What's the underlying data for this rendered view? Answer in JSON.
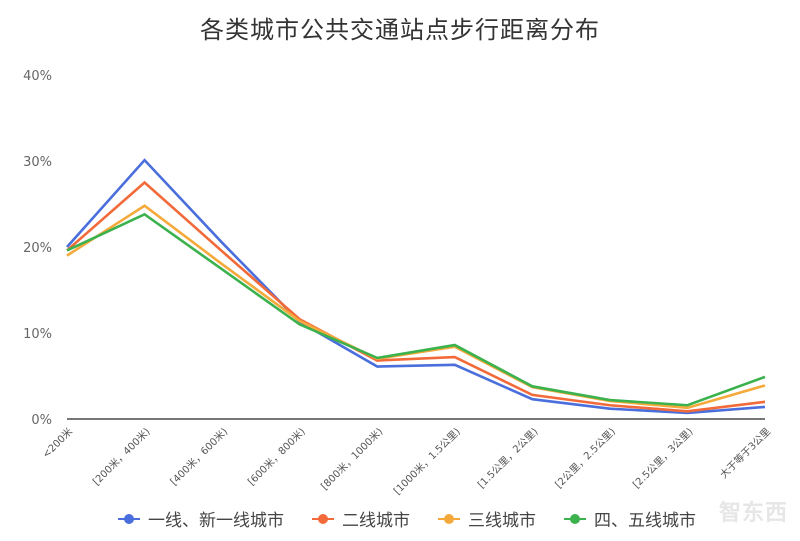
{
  "chart_data": {
    "type": "line",
    "title": "各类城市公共交通站点步行距离分布",
    "xlabel": "",
    "ylabel": "",
    "ylim": [
      0,
      40
    ],
    "yticks": [
      "0%",
      "10%",
      "20%",
      "30%",
      "40%"
    ],
    "grid": false,
    "legend_position": "bottom",
    "categories": [
      "<200米",
      "[200米，400米)",
      "[400米，600米)",
      "[600米，800米)",
      "[800米，1000米)",
      "[1000米，1.5公里)",
      "[1.5公里，2公里)",
      "[2公里，2.5公里)",
      "[2.5公里，3公里)",
      "大于等于3公里"
    ],
    "series": [
      {
        "name": "一线、新一线城市",
        "color": "#4a6fdc",
        "values": [
          20.0,
          30.1,
          20.5,
          11.3,
          6.1,
          6.3,
          2.3,
          1.2,
          0.7,
          1.4
        ]
      },
      {
        "name": "二线城市",
        "color": "#f26a3a",
        "values": [
          19.6,
          27.5,
          19.5,
          11.6,
          6.8,
          7.2,
          2.8,
          1.6,
          0.9,
          2.0
        ]
      },
      {
        "name": "三线城市",
        "color": "#f5a93a",
        "values": [
          19.0,
          24.8,
          18.0,
          11.4,
          7.0,
          8.4,
          3.7,
          2.1,
          1.3,
          3.9
        ]
      },
      {
        "name": "四、五线城市",
        "color": "#3bb24e",
        "values": [
          19.6,
          23.8,
          17.4,
          11.0,
          7.1,
          8.6,
          3.8,
          2.2,
          1.6,
          4.9
        ]
      }
    ]
  },
  "watermark": "智东西"
}
